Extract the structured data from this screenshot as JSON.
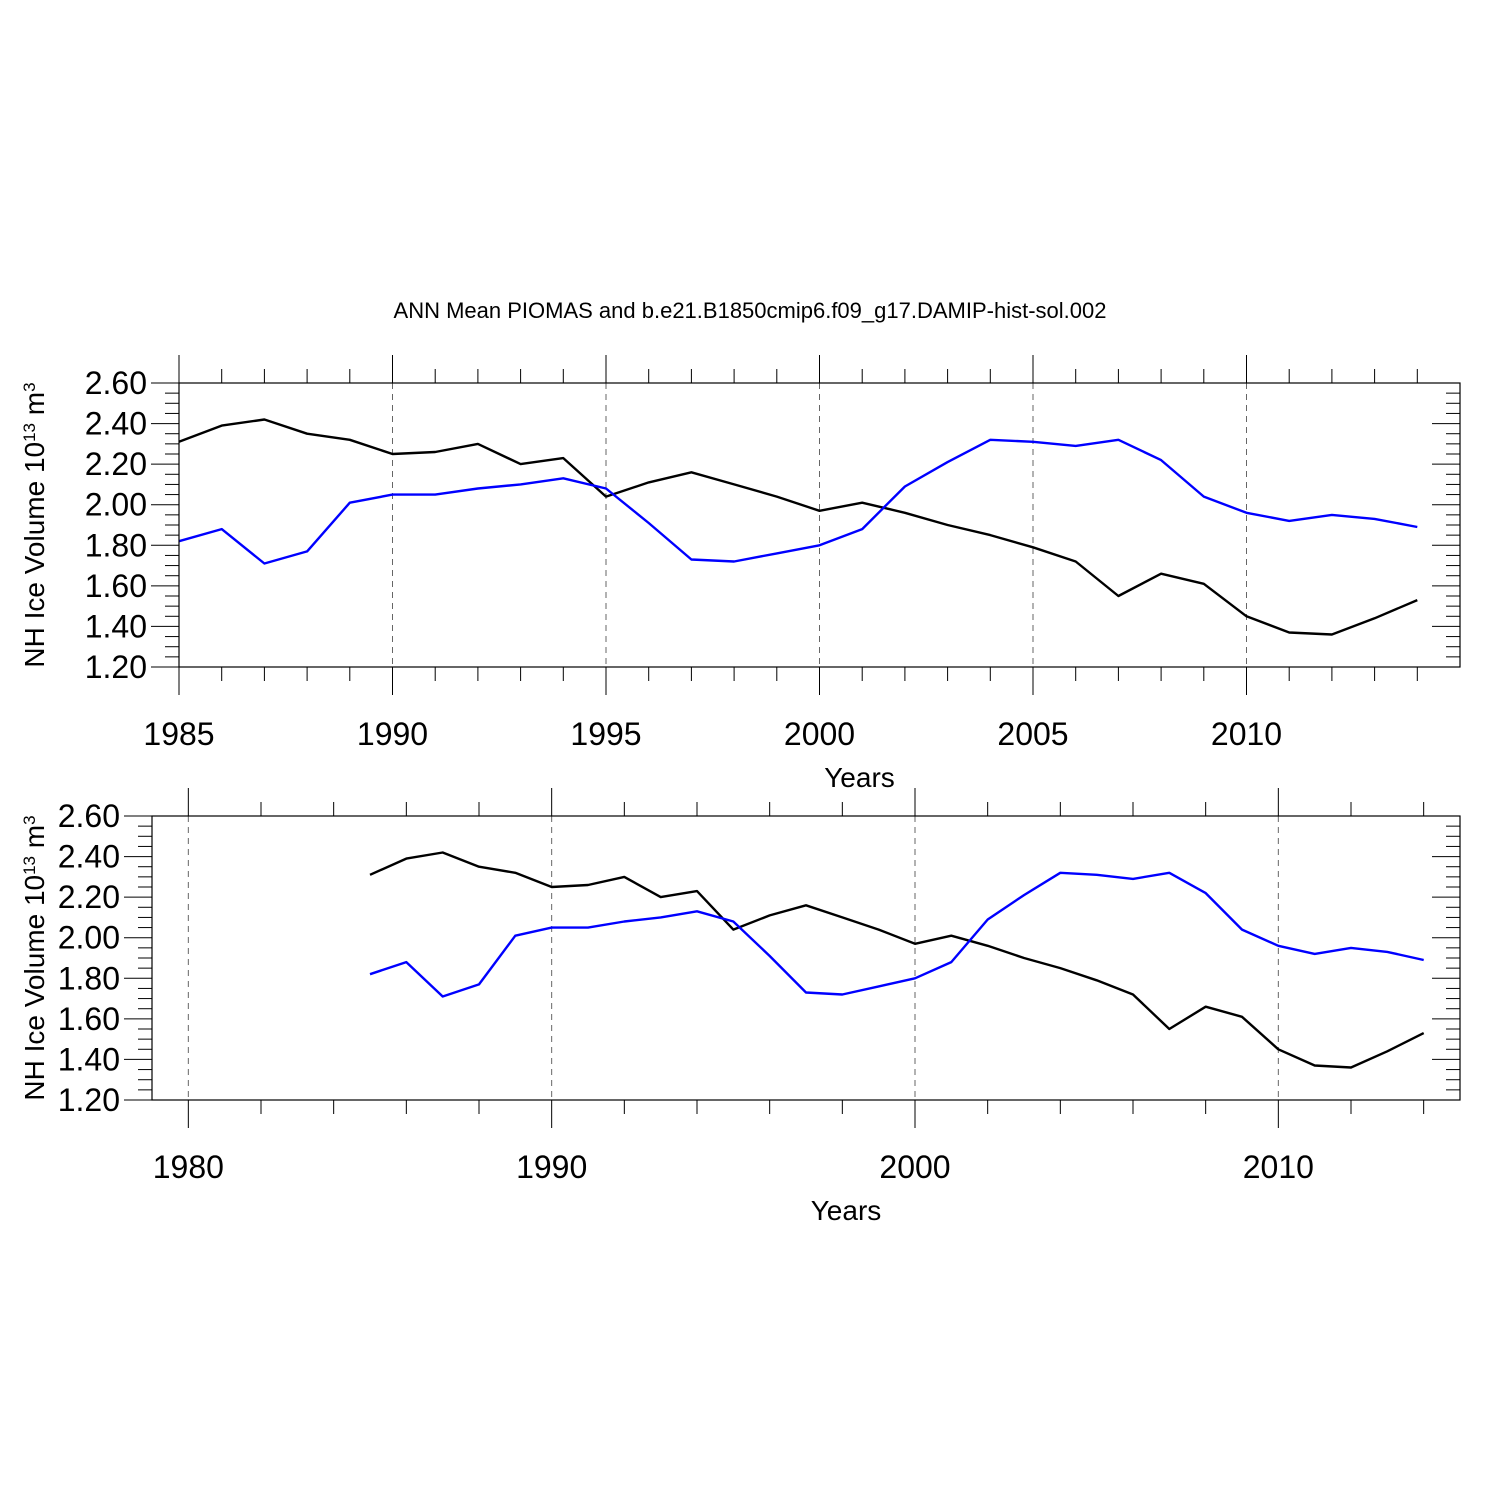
{
  "title": "ANN Mean PIOMAS and b.e21.B1850cmip6.f09_g17.DAMIP-hist-sol.002",
  "colors": {
    "series_piomas": "#000000",
    "series_model": "#0000ff"
  },
  "chart_data": [
    {
      "type": "line",
      "title": "ANN Mean PIOMAS and b.e21.B1850cmip6.f09_g17.DAMIP-hist-sol.002",
      "xlabel": "Years",
      "ylabel": "NH Ice Volume 10",
      "ylabel_exp": "13",
      "ylabel_unit": "m",
      "ylabel_unit_exp": "3",
      "xlim": [
        1985,
        2015
      ],
      "ylim": [
        1.2,
        2.6
      ],
      "major_xticks": [
        1985,
        1990,
        1995,
        2000,
        2005,
        2010
      ],
      "major_xtick_labels": [
        "1985",
        "1990",
        "1995",
        "2000",
        "2005",
        "2010"
      ],
      "minor_xticks": [
        1986,
        1987,
        1988,
        1989,
        1991,
        1992,
        1993,
        1994,
        1996,
        1997,
        1998,
        1999,
        2001,
        2002,
        2003,
        2004,
        2006,
        2007,
        2008,
        2009,
        2011,
        2012,
        2013,
        2014
      ],
      "yticks": [
        1.2,
        1.4,
        1.6,
        1.8,
        2.0,
        2.2,
        2.4,
        2.6
      ],
      "ytick_labels": [
        "1.20",
        "1.40",
        "1.60",
        "1.80",
        "2.00",
        "2.20",
        "2.40",
        "2.60"
      ],
      "gridlines": "dashed vertical at major x ticks",
      "x": [
        1985,
        1986,
        1987,
        1988,
        1989,
        1990,
        1991,
        1992,
        1993,
        1994,
        1995,
        1996,
        1997,
        1998,
        1999,
        2000,
        2001,
        2002,
        2003,
        2004,
        2005,
        2006,
        2007,
        2008,
        2009,
        2010,
        2011,
        2012,
        2013,
        2014,
        2015
      ],
      "series": [
        {
          "name": "PIOMAS",
          "color": "#000000",
          "values": [
            2.31,
            2.39,
            2.42,
            2.35,
            2.32,
            2.25,
            2.26,
            2.3,
            2.2,
            2.23,
            2.04,
            2.11,
            2.16,
            2.1,
            2.04,
            1.97,
            2.01,
            1.96,
            1.9,
            1.85,
            1.79,
            1.72,
            1.55,
            1.66,
            1.61,
            1.45,
            1.37,
            1.36,
            1.44,
            1.53,
            null
          ]
        },
        {
          "name": "b.e21.B1850cmip6.f09_g17.DAMIP-hist-sol.002",
          "color": "#0000ff",
          "values": [
            1.82,
            1.88,
            1.71,
            1.77,
            2.01,
            2.05,
            2.05,
            2.08,
            2.1,
            2.13,
            2.08,
            1.91,
            1.73,
            1.72,
            1.76,
            1.8,
            1.88,
            2.09,
            2.21,
            2.32,
            2.31,
            2.29,
            2.32,
            2.22,
            2.04,
            1.96,
            1.92,
            1.95,
            1.93,
            1.89,
            null
          ]
        }
      ]
    },
    {
      "type": "line",
      "title": "",
      "xlabel": "Years",
      "ylabel": "NH Ice Volume 10",
      "ylabel_exp": "13",
      "ylabel_unit": "m",
      "ylabel_unit_exp": "3",
      "xlim": [
        1979,
        2015
      ],
      "ylim": [
        1.2,
        2.6
      ],
      "major_xticks": [
        1980,
        1990,
        2000,
        2010
      ],
      "major_xtick_labels": [
        "1980",
        "1990",
        "2000",
        "2010"
      ],
      "minor_xticks": [
        1982,
        1984,
        1986,
        1988,
        1992,
        1994,
        1996,
        1998,
        2002,
        2004,
        2006,
        2008,
        2012,
        2014
      ],
      "yticks": [
        1.2,
        1.4,
        1.6,
        1.8,
        2.0,
        2.2,
        2.4,
        2.6
      ],
      "ytick_labels": [
        "1.20",
        "1.40",
        "1.60",
        "1.80",
        "2.00",
        "2.20",
        "2.40",
        "2.60"
      ],
      "gridlines": "dashed vertical at major x ticks",
      "x": [
        1985,
        1986,
        1987,
        1988,
        1989,
        1990,
        1991,
        1992,
        1993,
        1994,
        1995,
        1996,
        1997,
        1998,
        1999,
        2000,
        2001,
        2002,
        2003,
        2004,
        2005,
        2006,
        2007,
        2008,
        2009,
        2010,
        2011,
        2012,
        2013,
        2014
      ],
      "series": [
        {
          "name": "PIOMAS",
          "color": "#000000",
          "values": [
            2.31,
            2.39,
            2.42,
            2.35,
            2.32,
            2.25,
            2.26,
            2.3,
            2.2,
            2.23,
            2.04,
            2.11,
            2.16,
            2.1,
            2.04,
            1.97,
            2.01,
            1.96,
            1.9,
            1.85,
            1.79,
            1.72,
            1.55,
            1.66,
            1.61,
            1.45,
            1.37,
            1.36,
            1.44,
            1.53
          ]
        },
        {
          "name": "b.e21.B1850cmip6.f09_g17.DAMIP-hist-sol.002",
          "color": "#0000ff",
          "values": [
            1.82,
            1.88,
            1.71,
            1.77,
            2.01,
            2.05,
            2.05,
            2.08,
            2.1,
            2.13,
            2.08,
            1.91,
            1.73,
            1.72,
            1.76,
            1.8,
            1.88,
            2.09,
            2.21,
            2.32,
            2.31,
            2.29,
            2.32,
            2.22,
            2.04,
            1.96,
            1.92,
            1.95,
            1.93,
            1.89
          ]
        }
      ]
    }
  ]
}
